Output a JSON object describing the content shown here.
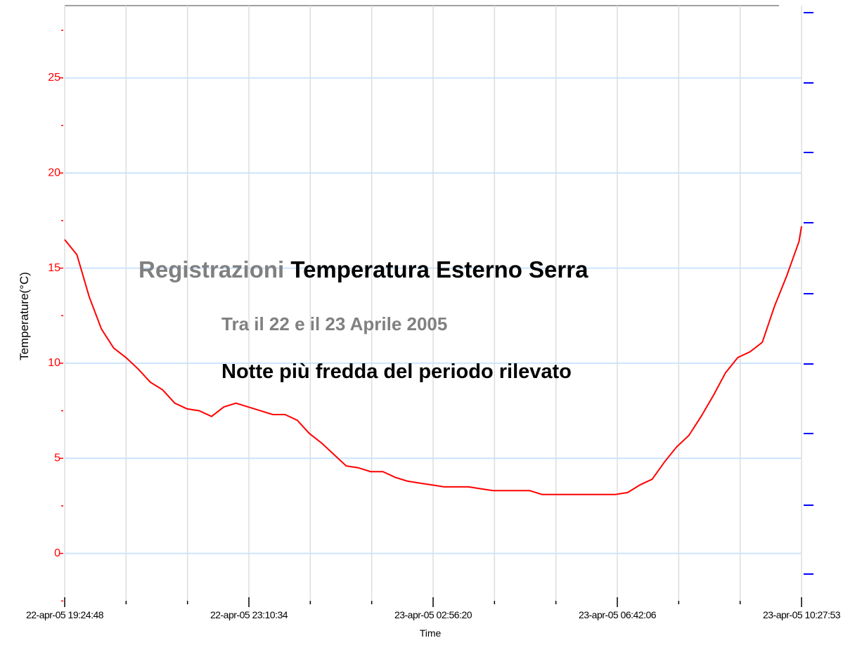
{
  "chart_data": {
    "type": "line",
    "title_parts": [
      {
        "text": "Registrazioni",
        "color": "#808080"
      },
      {
        "text": "Temperatura Esterno Serra",
        "color": "#000000"
      }
    ],
    "subtitle": {
      "text": "Tra il 22 e il 23 Aprile 2005",
      "color": "#808080"
    },
    "annotation": {
      "text": "Notte più fredda del periodo rilevato",
      "color": "#000000"
    },
    "xlabel": "Time",
    "ylabel": "Temperature(°C)",
    "xlim": [
      "2005-04-22T19:24:48",
      "2005-04-23T10:27:53"
    ],
    "xticks": [
      {
        "value": "2005-04-22T19:24:48",
        "label": "22-apr-05 19:24:48"
      },
      {
        "value": "2005-04-22T23:10:34",
        "label": "22-apr-05 23:10:34"
      },
      {
        "value": "2005-04-23T02:56:20",
        "label": "23-apr-05 02:56:20"
      },
      {
        "value": "2005-04-23T06:42:06",
        "label": "23-apr-05 06:42:06"
      },
      {
        "value": "2005-04-23T10:27:53",
        "label": "23-apr-05 10:27:53"
      }
    ],
    "ylim": [
      -2.6,
      28.8
    ],
    "yticks": [
      0,
      5,
      10,
      15,
      20,
      25
    ],
    "yminor_ticks": [
      -2.5,
      2.5,
      7.5,
      12.5,
      17.5,
      22.5,
      27.5
    ],
    "grid": true,
    "x": [
      "2005-04-22T19:24:48",
      "2005-04-22T19:39:48",
      "2005-04-22T19:54:48",
      "2005-04-22T20:09:48",
      "2005-04-22T20:24:48",
      "2005-04-22T20:39:48",
      "2005-04-22T20:54:48",
      "2005-04-22T21:09:48",
      "2005-04-22T21:24:48",
      "2005-04-22T21:39:48",
      "2005-04-22T21:54:48",
      "2005-04-22T22:09:48",
      "2005-04-22T22:24:48",
      "2005-04-22T22:39:48",
      "2005-04-22T22:54:48",
      "2005-04-22T23:09:48",
      "2005-04-22T23:24:48",
      "2005-04-22T23:39:48",
      "2005-04-22T23:54:48",
      "2005-04-23T00:09:48",
      "2005-04-23T00:24:48",
      "2005-04-23T00:39:48",
      "2005-04-23T00:54:48",
      "2005-04-23T01:09:48",
      "2005-04-23T01:24:48",
      "2005-04-23T01:39:48",
      "2005-04-23T01:54:48",
      "2005-04-23T02:09:48",
      "2005-04-23T02:24:48",
      "2005-04-23T02:39:48",
      "2005-04-23T02:54:48",
      "2005-04-23T03:09:48",
      "2005-04-23T03:24:48",
      "2005-04-23T03:39:48",
      "2005-04-23T03:54:48",
      "2005-04-23T04:09:48",
      "2005-04-23T04:24:48",
      "2005-04-23T04:39:48",
      "2005-04-23T04:54:48",
      "2005-04-23T05:09:48",
      "2005-04-23T05:24:48",
      "2005-04-23T05:39:48",
      "2005-04-23T05:54:48",
      "2005-04-23T06:09:48",
      "2005-04-23T06:24:48",
      "2005-04-23T06:39:48",
      "2005-04-23T06:54:48",
      "2005-04-23T07:09:48",
      "2005-04-23T07:24:48",
      "2005-04-23T07:39:48",
      "2005-04-23T07:54:48",
      "2005-04-23T08:09:48",
      "2005-04-23T08:24:48",
      "2005-04-23T08:39:48",
      "2005-04-23T08:54:48",
      "2005-04-23T09:09:48",
      "2005-04-23T09:24:48",
      "2005-04-23T09:39:48",
      "2005-04-23T09:54:48",
      "2005-04-23T10:09:48",
      "2005-04-23T10:24:48",
      "2005-04-23T10:27:53"
    ],
    "series": [
      {
        "name": "Temperature",
        "color": "#ff0000",
        "values": [
          16.5,
          15.7,
          13.5,
          11.8,
          10.8,
          10.3,
          9.7,
          9.0,
          8.6,
          7.9,
          7.6,
          7.5,
          7.2,
          7.7,
          7.9,
          7.7,
          7.5,
          7.3,
          7.3,
          7.0,
          6.3,
          5.8,
          5.2,
          4.6,
          4.5,
          4.3,
          4.3,
          4.0,
          3.8,
          3.7,
          3.6,
          3.5,
          3.5,
          3.5,
          3.4,
          3.3,
          3.3,
          3.3,
          3.3,
          3.1,
          3.1,
          3.1,
          3.1,
          3.1,
          3.1,
          3.1,
          3.2,
          3.6,
          3.9,
          4.8,
          5.6,
          6.2,
          7.2,
          8.3,
          9.5,
          10.3,
          10.6,
          11.1,
          13.0,
          14.6,
          16.4,
          17.2
        ]
      }
    ]
  }
}
